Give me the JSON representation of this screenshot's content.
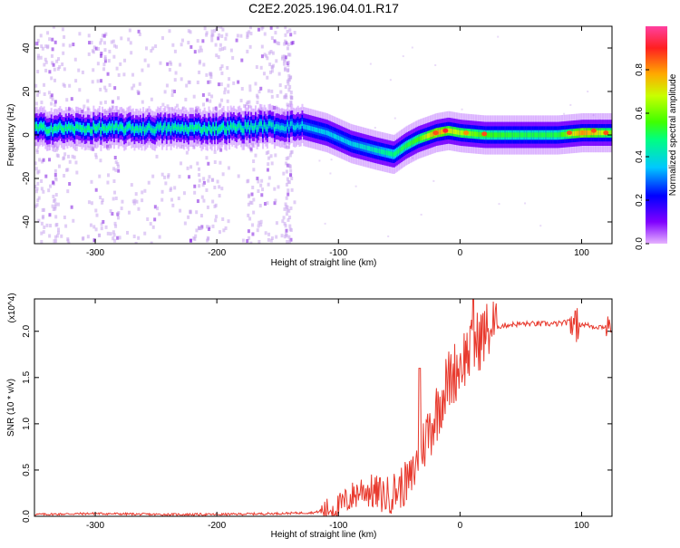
{
  "title": "C2E2.2025.196.04.01.R17",
  "colors": {
    "signal_line": "#e83a2e",
    "scatter_faint": "#c9a6ee",
    "scatter_dark": "#8a2be2",
    "axis": "#000000"
  },
  "chart_data": [
    {
      "type": "heatmap",
      "title": "C2E2.2025.196.04.01.R17",
      "xlabel": "Height of straight line (km)",
      "ylabel": "Frequency (Hz)",
      "xlim": [
        -350,
        125
      ],
      "ylim": [
        -50,
        50
      ],
      "x_ticks": [
        -300,
        -200,
        -100,
        0,
        100
      ],
      "y_ticks": [
        -40,
        -20,
        0,
        20,
        40
      ],
      "grid": false,
      "colorbar": {
        "label": "Normalized spectral amplitude",
        "range": [
          0.0,
          1.0
        ],
        "ticks": [
          "0.0",
          "0.2",
          "0.4",
          "0.6",
          "0.8"
        ],
        "colormap": [
          "#e6b3ff",
          "#8000ff",
          "#0000ff",
          "#00c8ff",
          "#00ff80",
          "#40ff00",
          "#c8ff00",
          "#ffaa00",
          "#ff2020",
          "#ff40a0"
        ]
      },
      "ridge": {
        "description_values_x": [
          -350,
          -300,
          -250,
          -200,
          -160,
          -130,
          -110,
          -90,
          -70,
          -55,
          -45,
          -35,
          -20,
          -10,
          0,
          20,
          50,
          80,
          100,
          125
        ],
        "frequency_hz": [
          3,
          3,
          3,
          3,
          4,
          4,
          1,
          -4,
          -7,
          -9,
          -5,
          -2,
          1,
          2,
          1,
          0,
          0,
          0,
          1,
          1
        ],
        "amplitude": [
          0.45,
          0.45,
          0.42,
          0.45,
          0.4,
          0.35,
          0.35,
          0.35,
          0.4,
          0.45,
          0.5,
          0.55,
          0.8,
          0.7,
          0.65,
          0.55,
          0.5,
          0.5,
          0.8,
          0.6
        ]
      }
    },
    {
      "type": "line",
      "xlabel": "Height of straight line (km)",
      "ylabel": "SNR (10 * v/v)",
      "y_multiplier_label": "(x10^4)",
      "xlim": [
        -350,
        125
      ],
      "ylim": [
        0,
        2.35
      ],
      "x_ticks": [
        -300,
        -200,
        -100,
        0,
        100
      ],
      "y_ticks": [
        "0.0",
        "0.5",
        "1.0",
        "1.5",
        "2.0"
      ],
      "grid": false,
      "series": [
        {
          "x": [
            -350,
            -300,
            -250,
            -200,
            -150,
            -120,
            -100,
            -90,
            -80,
            -70,
            -60,
            -50,
            -40,
            -35,
            -30,
            -25,
            -20,
            -15,
            -10,
            -5,
            0,
            5,
            10,
            15,
            20,
            25,
            30,
            40,
            50,
            60,
            70,
            80,
            90,
            95,
            100,
            110,
            125
          ],
          "y": [
            0.02,
            0.03,
            0.02,
            0.02,
            0.03,
            0.04,
            0.1,
            0.2,
            0.3,
            0.25,
            0.22,
            0.3,
            0.4,
            0.6,
            0.8,
            0.95,
            1.1,
            1.3,
            1.45,
            1.55,
            1.65,
            1.75,
            1.8,
            1.9,
            1.97,
            2.03,
            2.05,
            2.07,
            2.08,
            2.08,
            2.08,
            2.08,
            2.1,
            2.05,
            2.08,
            2.05,
            2.05
          ]
        }
      ]
    }
  ]
}
